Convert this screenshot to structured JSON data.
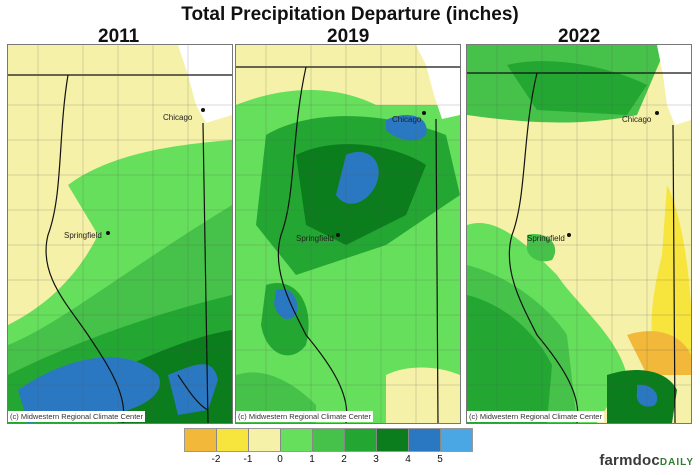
{
  "title": "Total Precipitation Departure (inches)",
  "panels": [
    {
      "year": "2011",
      "credit": "(c) Midwestern Regional Climate Center",
      "cities": [
        "Chicago",
        "Springfield"
      ]
    },
    {
      "year": "2019",
      "credit": "(c) Midwestern Regional Climate Center",
      "cities": [
        "Chicago",
        "Springfield"
      ]
    },
    {
      "year": "2022",
      "credit": "(c) Midwestern Regional Climate Center",
      "cities": [
        "Chicago",
        "Springfield"
      ]
    }
  ],
  "legend": {
    "colors": [
      "#f2b83a",
      "#f7e43c",
      "#f6f1a8",
      "#66e05c",
      "#46c24a",
      "#23a732",
      "#0b7d1c",
      "#2b78c2",
      "#4aa7e3"
    ],
    "ticks": [
      "-2",
      "-1",
      "0",
      "1",
      "2",
      "3",
      "4",
      "5"
    ]
  },
  "brand": {
    "main": "farmdoc",
    "suffix": "DAILY"
  }
}
